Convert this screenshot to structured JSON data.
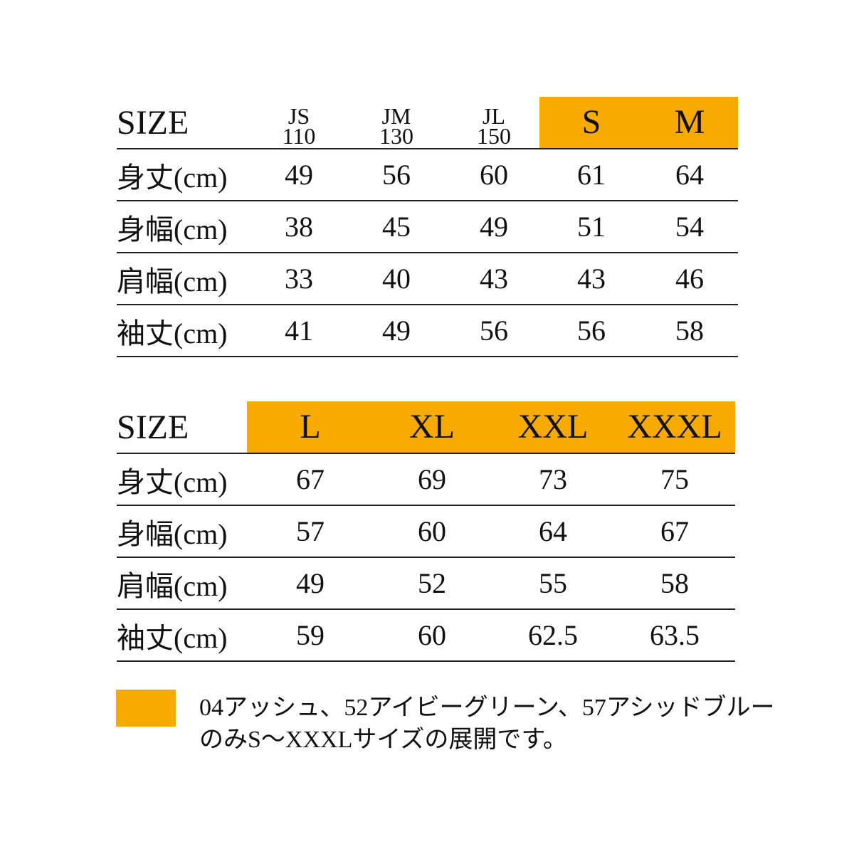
{
  "colors": {
    "highlight": "#F7AA00",
    "rule": "#222222"
  },
  "table1": {
    "size_label": "SIZE",
    "columns": [
      {
        "top": "JS",
        "bottom": "110",
        "highlight": false
      },
      {
        "top": "JM",
        "bottom": "130",
        "highlight": false
      },
      {
        "top": "JL",
        "bottom": "150",
        "highlight": false
      },
      {
        "top": "S",
        "bottom": "",
        "highlight": true
      },
      {
        "top": "M",
        "bottom": "",
        "highlight": true
      }
    ],
    "rows": [
      {
        "label": "身丈(cm)",
        "values": [
          "49",
          "56",
          "60",
          "61",
          "64"
        ]
      },
      {
        "label": "身幅(cm)",
        "values": [
          "38",
          "45",
          "49",
          "51",
          "54"
        ]
      },
      {
        "label": "肩幅(cm)",
        "values": [
          "33",
          "40",
          "43",
          "43",
          "46"
        ]
      },
      {
        "label": "袖丈(cm)",
        "values": [
          "41",
          "49",
          "56",
          "56",
          "58"
        ]
      }
    ]
  },
  "table2": {
    "size_label": "SIZE",
    "columns": [
      {
        "top": "L",
        "highlight": true
      },
      {
        "top": "XL",
        "highlight": true
      },
      {
        "top": "XXL",
        "highlight": true
      },
      {
        "top": "XXXL",
        "highlight": true
      }
    ],
    "rows": [
      {
        "label": "身丈(cm)",
        "values": [
          "67",
          "69",
          "73",
          "75"
        ]
      },
      {
        "label": "身幅(cm)",
        "values": [
          "57",
          "60",
          "64",
          "67"
        ]
      },
      {
        "label": "肩幅(cm)",
        "values": [
          "49",
          "52",
          "55",
          "58"
        ]
      },
      {
        "label": "袖丈(cm)",
        "values": [
          "59",
          "60",
          "62.5",
          "63.5"
        ]
      }
    ]
  },
  "legend": {
    "line1": "04アッシュ、52アイビーグリーン、57アシッドブルー",
    "line2": "のみS〜XXXLサイズの展開です。"
  }
}
